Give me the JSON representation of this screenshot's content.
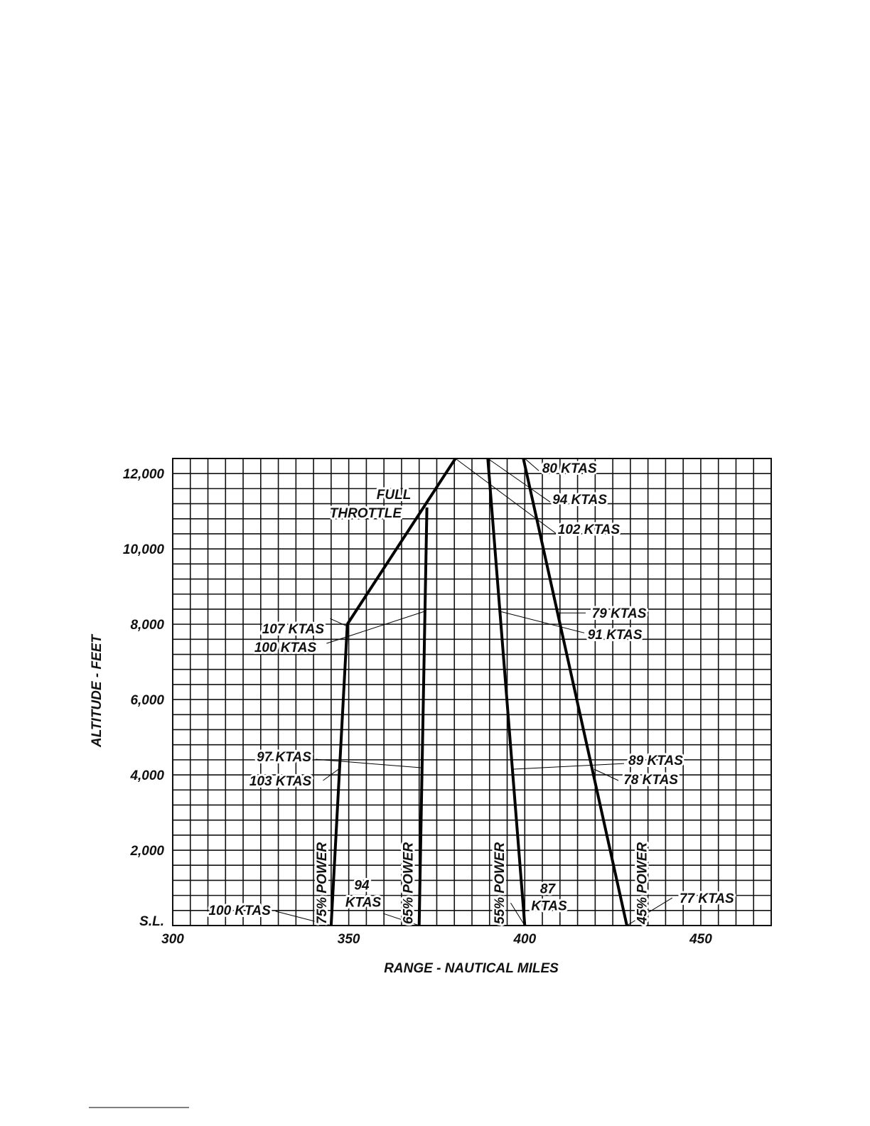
{
  "chart_data": {
    "type": "line",
    "xlabel": "RANGE - NAUTICAL MILES",
    "ylabel": "ALTITUDE - FEET",
    "xlim": [
      300,
      470
    ],
    "ylim": [
      0,
      12400
    ],
    "grid": true,
    "x_grid_step": 5,
    "y_grid_step": 400,
    "x_ticks": [
      {
        "v": 300,
        "label": "300"
      },
      {
        "v": 350,
        "label": "350"
      },
      {
        "v": 400,
        "label": "400"
      },
      {
        "v": 450,
        "label": "450"
      }
    ],
    "y_ticks": [
      {
        "v": 0,
        "label": "S.L."
      },
      {
        "v": 2000,
        "label": "2,000"
      },
      {
        "v": 4000,
        "label": "4,000"
      },
      {
        "v": 6000,
        "label": "6,000"
      },
      {
        "v": 8000,
        "label": "8,000"
      },
      {
        "v": 10000,
        "label": "10,000"
      },
      {
        "v": 12000,
        "label": "12,000"
      }
    ],
    "series": [
      {
        "name": "75% POWER",
        "points": [
          [
            345,
            0
          ],
          [
            349.6,
            8000
          ]
        ]
      },
      {
        "name": "FULL THROTTLE",
        "points": [
          [
            349.6,
            8000
          ],
          [
            380.3,
            12400
          ]
        ]
      },
      {
        "name": "65% POWER",
        "points": [
          [
            370,
            0
          ],
          [
            372.2,
            11100
          ]
        ]
      },
      {
        "name": "55% POWER",
        "points": [
          [
            400,
            0
          ],
          [
            389.5,
            12400
          ]
        ]
      },
      {
        "name": "45% POWER",
        "points": [
          [
            429,
            0
          ],
          [
            399.6,
            12400
          ]
        ]
      }
    ],
    "series_labels": [
      {
        "text": "75% POWER",
        "x": 342,
        "y": 1200
      },
      {
        "text": "65% POWER",
        "x": 366.5,
        "y": 1300
      },
      {
        "text": "55% POWER",
        "x": 392.5,
        "y": 1300
      },
      {
        "text": "45% POWER",
        "x": 433,
        "y": 1300
      }
    ],
    "throttle_label": [
      {
        "text": "FULL",
        "x": 362.8,
        "y": 11460
      },
      {
        "text": "THROTTLE",
        "x": 354.8,
        "y": 10970
      }
    ],
    "annotations": [
      {
        "text": "80 KTAS",
        "x": 412.7,
        "y": 12150,
        "from": [
          404,
          12075
        ],
        "to": [
          400,
          12400
        ]
      },
      {
        "text": "94 KTAS",
        "x": 415.6,
        "y": 11320,
        "from": [
          407.2,
          11245
        ],
        "to": [
          389.5,
          12400
        ]
      },
      {
        "text": "102 KTAS",
        "x": 418.2,
        "y": 10530,
        "from": [
          409.3,
          10380
        ],
        "to": [
          380.3,
          12400
        ]
      },
      {
        "text": "79 KTAS",
        "x": 426.8,
        "y": 8300,
        "from": [
          417.3,
          8300
        ],
        "to": [
          409.3,
          8300
        ]
      },
      {
        "text": "91 KTAS",
        "x": 425.6,
        "y": 7740,
        "from": [
          416.9,
          7770
        ],
        "to": [
          393,
          8340
        ]
      },
      {
        "text": "107 KTAS",
        "x": 334.2,
        "y": 7890,
        "from": [
          344.7,
          8150
        ],
        "to": [
          349.5,
          7950
        ]
      },
      {
        "text": "100 KTAS",
        "x": 332,
        "y": 7400,
        "from": [
          343.7,
          7490
        ],
        "to": [
          371.5,
          8340
        ]
      },
      {
        "text": "97 KTAS",
        "x": 331.6,
        "y": 4490,
        "from": [
          340.6,
          4415
        ],
        "to": [
          370.6,
          4190
        ]
      },
      {
        "text": "103  KTAS",
        "x": 330.6,
        "y": 3850,
        "from": [
          342.7,
          3850
        ],
        "to": [
          347.1,
          4150
        ]
      },
      {
        "text": "89 KTAS",
        "x": 437.2,
        "y": 4400,
        "from": [
          428.2,
          4300
        ],
        "to": [
          396.4,
          4150
        ]
      },
      {
        "text": "78 KTAS",
        "x": 435.8,
        "y": 3890,
        "from": [
          426.6,
          3850
        ],
        "to": [
          419.7,
          4150
        ]
      },
      {
        "text": "100 KTAS",
        "x": 319,
        "y": 415,
        "from": [
          329.2,
          380
        ],
        "to": [
          345,
          0
        ]
      },
      {
        "text": "94",
        "text2": "KTAS",
        "x": 353.7,
        "y": 880,
        "from": [
          359.8,
          320
        ],
        "to": [
          370,
          0
        ]
      },
      {
        "text": "87",
        "text2": "KTAS",
        "x": 406.5,
        "y": 780,
        "from": [
          396,
          600
        ],
        "to": [
          400,
          0
        ]
      },
      {
        "text": "77 KTAS",
        "x": 451.7,
        "y": 735,
        "from": [
          441.9,
          735
        ],
        "to": [
          429,
          0
        ]
      }
    ]
  }
}
